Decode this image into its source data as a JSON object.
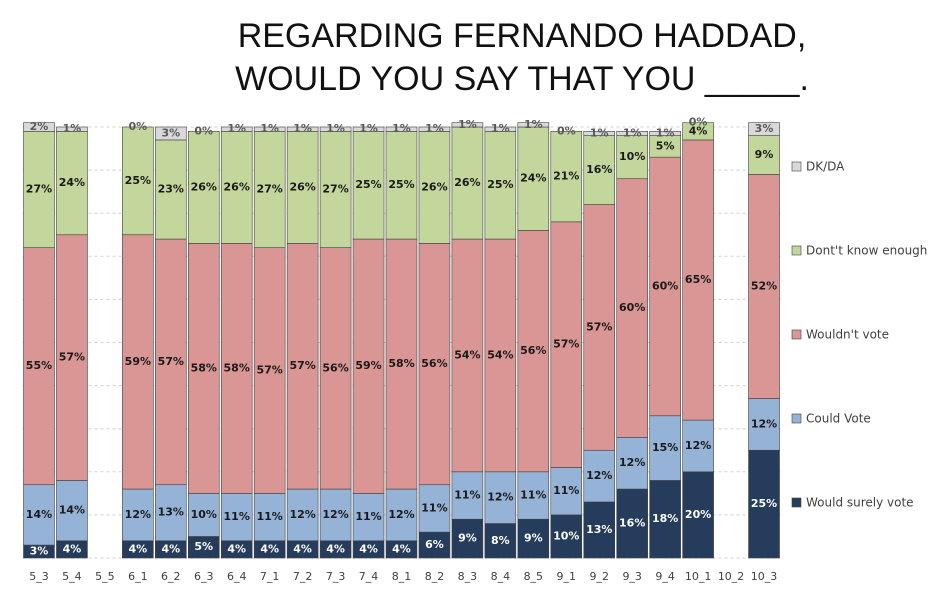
{
  "chart_data": {
    "type": "stacked-bar",
    "title": [
      "REGARDING FERNANDO HADDAD,",
      "WOULD YOU SAY THAT YOU _____."
    ],
    "categories": [
      "5_3",
      "5_4",
      "5_5",
      "6_1",
      "6_2",
      "6_3",
      "6_4",
      "7_1",
      "7_2",
      "7_3",
      "7_4",
      "8_1",
      "8_2",
      "8_3",
      "8_4",
      "8_5",
      "9_1",
      "9_2",
      "9_3",
      "9_4",
      "10_1",
      "10_2",
      "10_3"
    ],
    "series": [
      {
        "name": "Would surely vote",
        "color": "#253c5c",
        "values": [
          3,
          4,
          null,
          4,
          4,
          5,
          4,
          4,
          4,
          4,
          4,
          4,
          6,
          9,
          8,
          9,
          10,
          13,
          16,
          18,
          20,
          null,
          25
        ],
        "value_labels": [
          "3%",
          "4%",
          null,
          "4%",
          "4%",
          "5%",
          "4%",
          "4%",
          "4%",
          "4%",
          "4%",
          "4%",
          "6%",
          "9%",
          "8%",
          "9%",
          "10%",
          "13%",
          "16%",
          "18%",
          "20%",
          null,
          "25%"
        ]
      },
      {
        "name": "Could Vote",
        "color": "#95b3d7",
        "values": [
          14,
          14,
          null,
          12,
          13,
          10,
          11,
          11,
          12,
          12,
          11,
          12,
          11,
          11,
          12,
          11,
          11,
          12,
          12,
          15,
          12,
          null,
          12
        ],
        "value_labels": [
          "14%",
          "14%",
          null,
          "12%",
          "13%",
          "10%",
          "11%",
          "11%",
          "12%",
          "12%",
          "11%",
          "12%",
          "11%",
          "11%",
          "12%",
          "11%",
          "11%",
          "12%",
          "12%",
          "15%",
          "12%",
          null,
          "12%"
        ]
      },
      {
        "name": "Wouldn't vote",
        "color": "#d99694",
        "values": [
          55,
          57,
          null,
          59,
          57,
          58,
          58,
          57,
          57,
          56,
          59,
          58,
          56,
          54,
          54,
          56,
          57,
          57,
          60,
          60,
          65,
          null,
          52
        ],
        "value_labels": [
          "55%",
          "57%",
          null,
          "59%",
          "57%",
          "58%",
          "58%",
          "57%",
          "57%",
          "56%",
          "59%",
          "58%",
          "56%",
          "54%",
          "54%",
          "56%",
          "57%",
          "57%",
          "60%",
          "60%",
          "65%",
          null,
          "52%"
        ]
      },
      {
        "name": "Dont't know enough",
        "color": "#c3d69b",
        "values": [
          27,
          24,
          null,
          25,
          23,
          26,
          26,
          27,
          26,
          27,
          25,
          25,
          26,
          26,
          25,
          24,
          21,
          16,
          10,
          5,
          4,
          null,
          9
        ],
        "value_labels": [
          "27%",
          "24%",
          null,
          "25%",
          "23%",
          "26%",
          "26%",
          "27%",
          "26%",
          "27%",
          "25%",
          "25%",
          "26%",
          "26%",
          "25%",
          "24%",
          "21%",
          "16%",
          "10%",
          "5%",
          "4%",
          null,
          "9%"
        ]
      },
      {
        "name": "DK/DA",
        "color": "#d9d9d9",
        "values": [
          2,
          1,
          null,
          0,
          3,
          0,
          1,
          1,
          1,
          1,
          1,
          1,
          1,
          1,
          1,
          1,
          0,
          1,
          1,
          1,
          0,
          null,
          3
        ],
        "value_labels": [
          "2%",
          "1%",
          null,
          "0%",
          "3%",
          "0%",
          "1%",
          "1%",
          "1%",
          "1%",
          "1%",
          "1%",
          "1%",
          "1%",
          "1%",
          "1%",
          "0%",
          "1%",
          "1%",
          "1%",
          "0%",
          null,
          "3%"
        ]
      }
    ],
    "ylim": [
      0,
      100
    ],
    "yticks": [
      0,
      10,
      20,
      30,
      40,
      50,
      60,
      70,
      80,
      90,
      100
    ],
    "grid": true,
    "legend": "right"
  }
}
